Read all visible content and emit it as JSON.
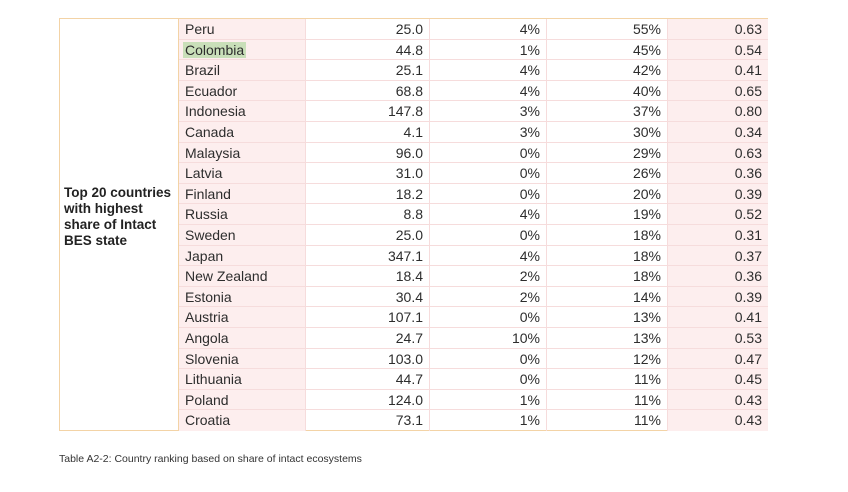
{
  "table": {
    "group_label": "Top 20 countries with highest share of Intact BES state",
    "rows": [
      {
        "country": "Peru",
        "v1": "25.0",
        "v2": "4%",
        "v3": "55%",
        "v4": "0.63"
      },
      {
        "country": "Colombia",
        "v1": "44.8",
        "v2": "1%",
        "v3": "45%",
        "v4": "0.54"
      },
      {
        "country": "Brazil",
        "v1": "25.1",
        "v2": "4%",
        "v3": "42%",
        "v4": "0.41"
      },
      {
        "country": "Ecuador",
        "v1": "68.8",
        "v2": "4%",
        "v3": "40%",
        "v4": "0.65"
      },
      {
        "country": "Indonesia",
        "v1": "147.8",
        "v2": "3%",
        "v3": "37%",
        "v4": "0.80"
      },
      {
        "country": "Canada",
        "v1": "4.1",
        "v2": "3%",
        "v3": "30%",
        "v4": "0.34"
      },
      {
        "country": "Malaysia",
        "v1": "96.0",
        "v2": "0%",
        "v3": "29%",
        "v4": "0.63"
      },
      {
        "country": "Latvia",
        "v1": "31.0",
        "v2": "0%",
        "v3": "26%",
        "v4": "0.36"
      },
      {
        "country": "Finland",
        "v1": "18.2",
        "v2": "0%",
        "v3": "20%",
        "v4": "0.39"
      },
      {
        "country": "Russia",
        "v1": "8.8",
        "v2": "4%",
        "v3": "19%",
        "v4": "0.52"
      },
      {
        "country": "Sweden",
        "v1": "25.0",
        "v2": "0%",
        "v3": "18%",
        "v4": "0.31"
      },
      {
        "country": "Japan",
        "v1": "347.1",
        "v2": "4%",
        "v3": "18%",
        "v4": "0.37"
      },
      {
        "country": "New Zealand",
        "v1": "18.4",
        "v2": "2%",
        "v3": "18%",
        "v4": "0.36"
      },
      {
        "country": "Estonia",
        "v1": "30.4",
        "v2": "2%",
        "v3": "14%",
        "v4": "0.39"
      },
      {
        "country": "Austria",
        "v1": "107.1",
        "v2": "0%",
        "v3": "13%",
        "v4": "0.41"
      },
      {
        "country": "Angola",
        "v1": "24.7",
        "v2": "10%",
        "v3": "13%",
        "v4": "0.53"
      },
      {
        "country": "Slovenia",
        "v1": "103.0",
        "v2": "0%",
        "v3": "12%",
        "v4": "0.47"
      },
      {
        "country": "Lithuania",
        "v1": "44.7",
        "v2": "0%",
        "v3": "11%",
        "v4": "0.45"
      },
      {
        "country": "Poland",
        "v1": "124.0",
        "v2": "1%",
        "v3": "11%",
        "v4": "0.43"
      },
      {
        "country": "Croatia",
        "v1": "73.1",
        "v2": "1%",
        "v3": "11%",
        "v4": "0.43"
      }
    ],
    "highlighted_country": "Colombia"
  },
  "caption": "Table A2-2: Country ranking based on share of intact ecosystems",
  "colors": {
    "frame_border": "#f3d3a6",
    "row_shade": "#fdeeee",
    "highlight": "#c9dfb9"
  }
}
